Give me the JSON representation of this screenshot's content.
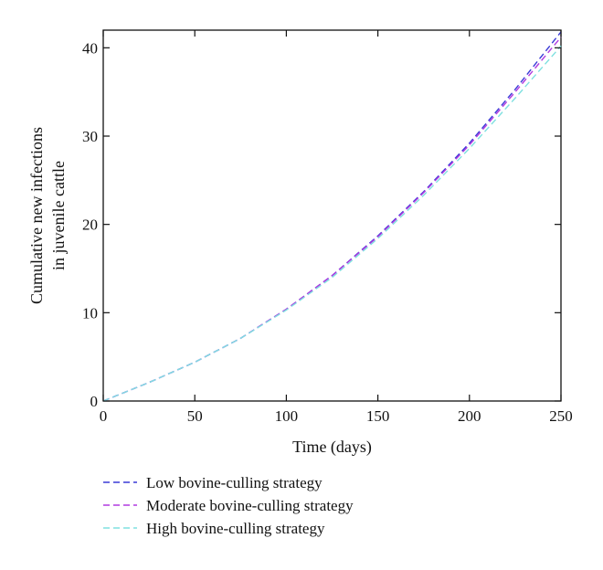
{
  "chart_data": {
    "type": "line",
    "xlabel": "Time (days)",
    "ylabel": [
      "Cumulative new infections",
      "in juvenile cattle"
    ],
    "xlim": [
      0,
      250
    ],
    "ylim": [
      0,
      42
    ],
    "xticks": [
      0,
      50,
      100,
      150,
      200,
      250
    ],
    "yticks": [
      0,
      10,
      20,
      30,
      40
    ],
    "x": [
      0,
      25,
      50,
      75,
      100,
      125,
      150,
      175,
      200,
      225,
      250
    ],
    "series": [
      {
        "name": "Low bovine-culling strategy",
        "color": "#3a3ad6",
        "values": [
          0,
          2.1,
          4.4,
          7.1,
          10.4,
          14.2,
          18.7,
          23.7,
          29.2,
          35.3,
          41.8
        ]
      },
      {
        "name": "Moderate bovine-culling strategy",
        "color": "#b03ae0",
        "values": [
          0,
          2.1,
          4.4,
          7.1,
          10.4,
          14.2,
          18.6,
          23.6,
          29.0,
          35.0,
          41.2
        ]
      },
      {
        "name": "High bovine-culling strategy",
        "color": "#7fe0e0",
        "values": [
          0,
          2.1,
          4.4,
          7.1,
          10.3,
          14.0,
          18.4,
          23.3,
          28.6,
          34.3,
          40.2
        ]
      }
    ],
    "grid": false,
    "legend_position": "bottom"
  }
}
